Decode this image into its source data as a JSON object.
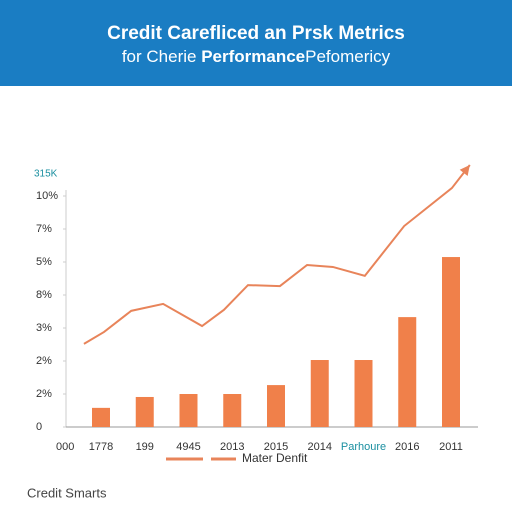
{
  "chart_data": {
    "type": "bar-line",
    "title": "Credit Carefliced an Prsk Metrics",
    "subtitle_parts": [
      "for Cherie ",
      "Performance",
      "Pefomericy"
    ],
    "y_label": "315K",
    "x_origin_label": "000",
    "footer": "Credit Smarts",
    "categories": [
      "1778",
      "199",
      "4945",
      "2013",
      "2015",
      "2014",
      "Parhoure",
      "2016",
      "2011"
    ],
    "ylim": [
      0,
      7.2
    ],
    "yticks": [
      0,
      {
        "value": 1,
        "label": "2%"
      },
      {
        "value": 2,
        "label": "2%"
      },
      {
        "value": 3,
        "label": "3%"
      },
      {
        "value": 4,
        "label": "8%"
      },
      {
        "value": 5,
        "label": "5%"
      },
      {
        "value": 6,
        "label": "7%"
      },
      {
        "value": 7,
        "label": "10%"
      }
    ],
    "series": [
      {
        "type": "bar",
        "color": "#f0804a",
        "values": [
          0.58,
          0.91,
          1.0,
          1.0,
          1.27,
          2.03,
          2.03,
          3.33,
          5.15
        ]
      },
      {
        "type": "line",
        "name": "Mater Denfit",
        "color": "#e8845a",
        "x": [
          -0.39,
          0.07,
          0.69,
          1.42,
          2.31,
          2.81,
          3.36,
          4.09,
          4.71,
          5.3,
          6.03,
          6.93,
          8.02,
          8.43
        ],
        "values": [
          2.52,
          2.88,
          3.52,
          3.73,
          3.06,
          3.55,
          4.3,
          4.27,
          4.91,
          4.85,
          4.58,
          6.09,
          7.24,
          7.94
        ]
      }
    ]
  }
}
